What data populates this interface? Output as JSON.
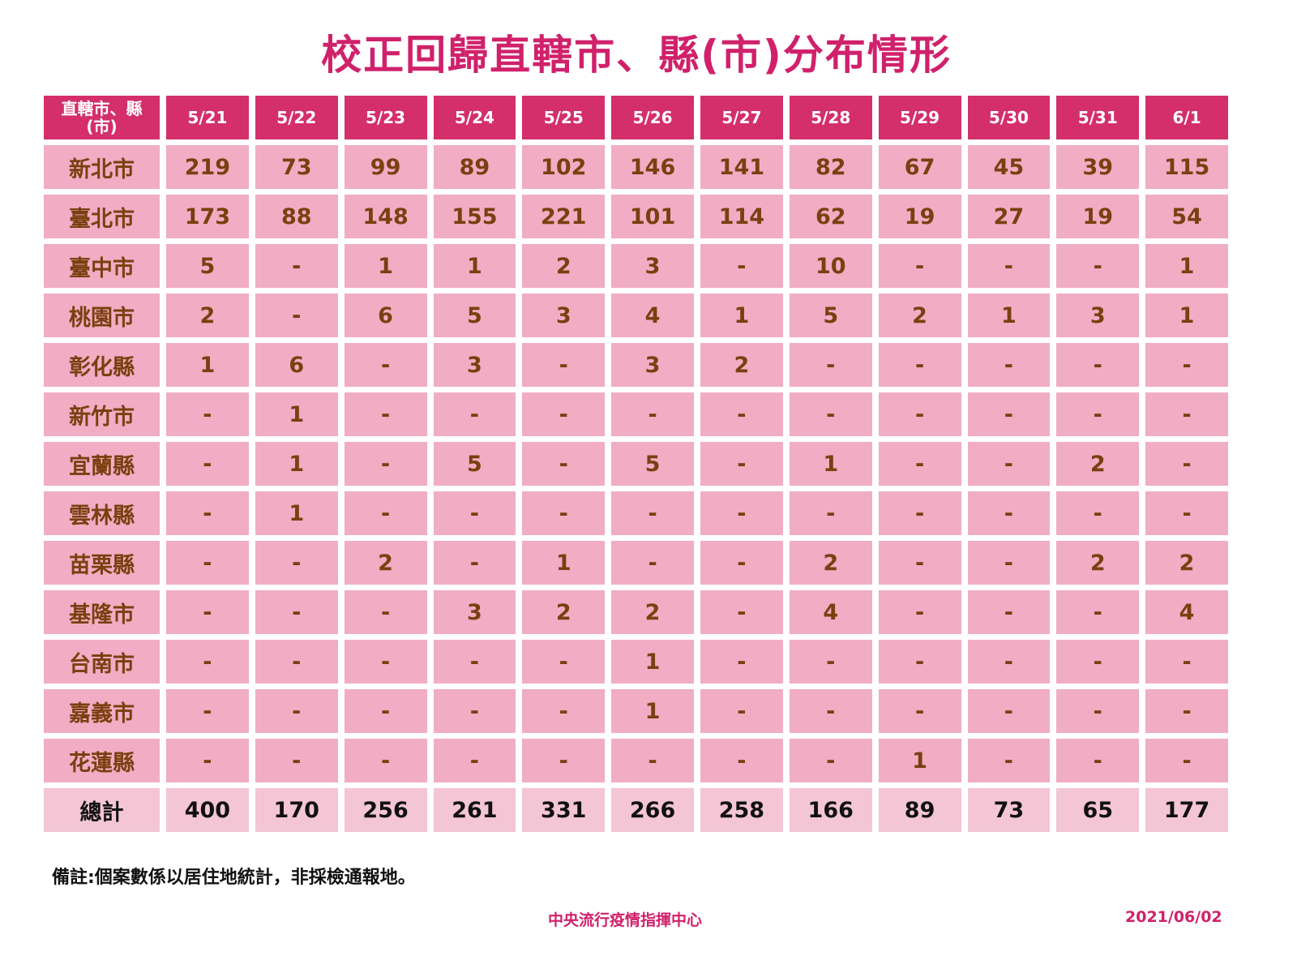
{
  "title": "校正回歸直轄市、縣(市)分布情形",
  "table": {
    "corner_header": "直轄市、縣(市)",
    "dates": [
      "5/21",
      "5/22",
      "5/23",
      "5/24",
      "5/25",
      "5/26",
      "5/27",
      "5/28",
      "5/29",
      "5/30",
      "5/31",
      "6/1"
    ],
    "rows": [
      {
        "name": "新北市",
        "values": [
          "219",
          "73",
          "99",
          "89",
          "102",
          "146",
          "141",
          "82",
          "67",
          "45",
          "39",
          "115"
        ]
      },
      {
        "name": "臺北市",
        "values": [
          "173",
          "88",
          "148",
          "155",
          "221",
          "101",
          "114",
          "62",
          "19",
          "27",
          "19",
          "54"
        ]
      },
      {
        "name": "臺中市",
        "values": [
          "5",
          "-",
          "1",
          "1",
          "2",
          "3",
          "-",
          "10",
          "-",
          "-",
          "-",
          "1"
        ]
      },
      {
        "name": "桃園市",
        "values": [
          "2",
          "-",
          "6",
          "5",
          "3",
          "4",
          "1",
          "5",
          "2",
          "1",
          "3",
          "1"
        ]
      },
      {
        "name": "彰化縣",
        "values": [
          "1",
          "6",
          "-",
          "3",
          "-",
          "3",
          "2",
          "-",
          "-",
          "-",
          "-",
          "-"
        ]
      },
      {
        "name": "新竹市",
        "values": [
          "-",
          "1",
          "-",
          "-",
          "-",
          "-",
          "-",
          "-",
          "-",
          "-",
          "-",
          "-"
        ]
      },
      {
        "name": "宜蘭縣",
        "values": [
          "-",
          "1",
          "-",
          "5",
          "-",
          "5",
          "-",
          "1",
          "-",
          "-",
          "2",
          "-"
        ]
      },
      {
        "name": "雲林縣",
        "values": [
          "-",
          "1",
          "-",
          "-",
          "-",
          "-",
          "-",
          "-",
          "-",
          "-",
          "-",
          "-"
        ]
      },
      {
        "name": "苗栗縣",
        "values": [
          "-",
          "-",
          "2",
          "-",
          "1",
          "-",
          "-",
          "2",
          "-",
          "-",
          "2",
          "2"
        ]
      },
      {
        "name": "基隆市",
        "values": [
          "-",
          "-",
          "-",
          "3",
          "2",
          "2",
          "-",
          "4",
          "-",
          "-",
          "-",
          "4"
        ]
      },
      {
        "name": "台南市",
        "values": [
          "-",
          "-",
          "-",
          "-",
          "-",
          "1",
          "-",
          "-",
          "-",
          "-",
          "-",
          "-"
        ]
      },
      {
        "name": "嘉義市",
        "values": [
          "-",
          "-",
          "-",
          "-",
          "-",
          "1",
          "-",
          "-",
          "-",
          "-",
          "-",
          "-"
        ]
      },
      {
        "name": "花蓮縣",
        "values": [
          "-",
          "-",
          "-",
          "-",
          "-",
          "-",
          "-",
          "-",
          "1",
          "-",
          "-",
          "-"
        ]
      }
    ],
    "total": {
      "name": "總計",
      "values": [
        "400",
        "170",
        "256",
        "261",
        "331",
        "266",
        "258",
        "166",
        "89",
        "73",
        "65",
        "177"
      ]
    }
  },
  "note": "備註:個案數係以居住地統計，非採檢通報地。",
  "organization": "中央流行疫情指揮中心",
  "date": "2021/06/02",
  "colors": {
    "header": "#d42f6b",
    "cell": "#f0adc4",
    "total": "#f3c5d5",
    "text": "#7b3f10",
    "title": "#d0216b"
  }
}
